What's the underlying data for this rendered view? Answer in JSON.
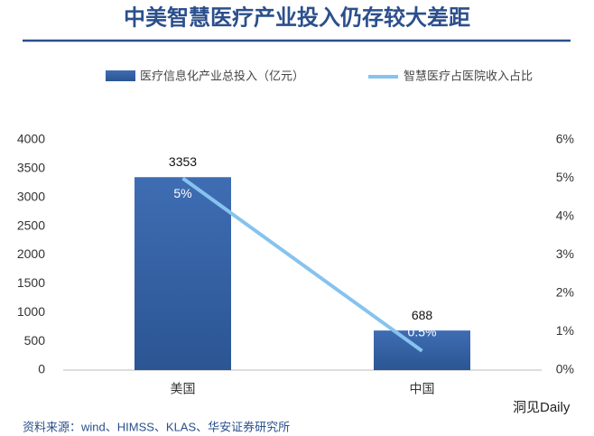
{
  "title": "中美智慧医疗产业投入仍存较大差距",
  "chart_data": {
    "type": "bar-line",
    "categories": [
      "美国",
      "中国"
    ],
    "series": [
      {
        "name": "医疗信息化产业总投入（亿元）",
        "color": "#3763a6",
        "values": [
          3353,
          688
        ]
      },
      {
        "name": "智慧医疗占医院收入占比",
        "color": "#86c3ef",
        "values": [
          5,
          0.5
        ],
        "value_labels": [
          "5%",
          "0.5%"
        ],
        "axis": "y2"
      }
    ],
    "ylim": [
      0,
      4000
    ],
    "yticks": [
      0,
      500,
      1000,
      1500,
      2000,
      2500,
      3000,
      3500,
      4000
    ],
    "y2lim": [
      0,
      6
    ],
    "y2ticks": [
      {
        "value": 0,
        "label": "0%"
      },
      {
        "value": 1,
        "label": "1%"
      },
      {
        "value": 2,
        "label": "2%"
      },
      {
        "value": 3,
        "label": "3%"
      },
      {
        "value": 4,
        "label": "4%"
      },
      {
        "value": 5,
        "label": "5%"
      },
      {
        "value": 6,
        "label": "6%"
      }
    ],
    "legend": "top"
  },
  "source": "资料来源：wind、HIMSS、KLAS、华安证券研究所",
  "watermark": "洞见Daily"
}
